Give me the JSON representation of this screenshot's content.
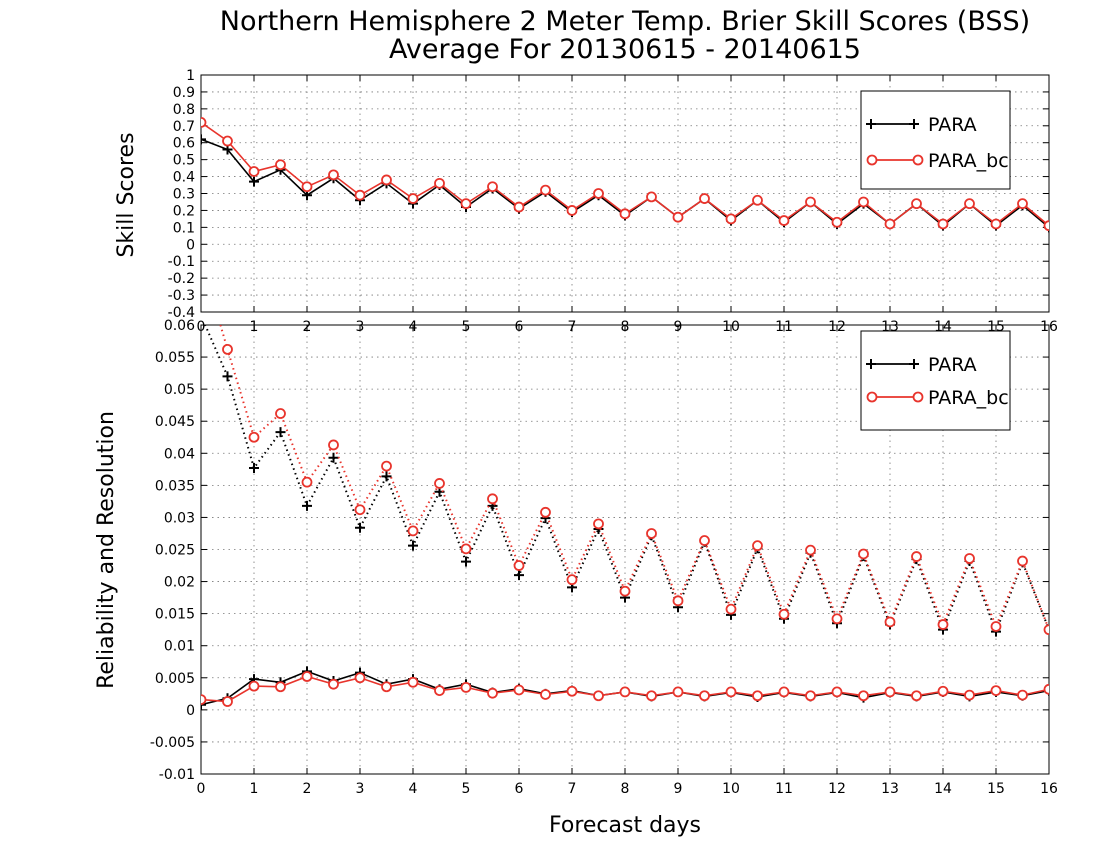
{
  "chart_data": {
    "title_line1": "Northern Hemisphere 2 Meter Temp. Brier Skill Scores (BSS)",
    "title_line2": "Average For 20130615 - 20140615",
    "xlabel": "Forecast days",
    "x_ticks": [
      0,
      1,
      2,
      3,
      4,
      5,
      6,
      7,
      8,
      9,
      10,
      11,
      12,
      13,
      14,
      15,
      16
    ],
    "x": [
      0,
      0.5,
      1,
      1.5,
      2,
      2.5,
      3,
      3.5,
      4,
      4.5,
      5,
      5.5,
      6,
      6.5,
      7,
      7.5,
      8,
      8.5,
      9,
      9.5,
      10,
      10.5,
      11,
      11.5,
      12,
      12.5,
      13,
      13.5,
      14,
      14.5,
      15,
      15.5,
      16
    ],
    "colors": {
      "PARA": "#000000",
      "PARA_bc": "#e8342c"
    },
    "legend_placement": "top-right",
    "panels": [
      {
        "type": "line",
        "ylabel": "Skill Scores",
        "ylim": [
          -0.4,
          1
        ],
        "y_tick_labels": [
          "-0.4",
          "-0.3",
          "-0.2",
          "-0.1",
          "0",
          "0.1",
          "0.2",
          "0.3",
          "0.4",
          "0.5",
          "0.6",
          "0.7",
          "0.8",
          "0.9",
          "1"
        ],
        "grid": true,
        "series": [
          {
            "name": "PARA",
            "marker": "plus",
            "style": "solid",
            "values": [
              0.62,
              0.56,
              0.37,
              0.44,
              0.29,
              0.39,
              0.26,
              0.36,
              0.24,
              0.35,
              0.22,
              0.33,
              0.21,
              0.31,
              0.19,
              0.29,
              0.17,
              0.28,
              0.16,
              0.27,
              0.14,
              0.26,
              0.13,
              0.25,
              0.12,
              0.24,
              0.12,
              0.24,
              0.11,
              0.24,
              0.11,
              0.23,
              0.1
            ]
          },
          {
            "name": "PARA_bc",
            "marker": "circle",
            "style": "solid",
            "values": [
              0.72,
              0.61,
              0.43,
              0.47,
              0.34,
              0.41,
              0.29,
              0.38,
              0.27,
              0.36,
              0.24,
              0.34,
              0.22,
              0.32,
              0.2,
              0.3,
              0.18,
              0.28,
              0.16,
              0.27,
              0.15,
              0.26,
              0.14,
              0.25,
              0.13,
              0.25,
              0.12,
              0.24,
              0.12,
              0.24,
              0.12,
              0.24,
              0.11
            ]
          }
        ]
      },
      {
        "type": "line",
        "ylabel": "Reliability and Resolution",
        "ylim": [
          -0.01,
          0.06
        ],
        "y_tick_labels": [
          "-0.01",
          "-0.005",
          "0",
          "0.005",
          "0.01",
          "0.015",
          "0.02",
          "0.025",
          "0.03",
          "0.035",
          "0.04",
          "0.045",
          "0.05",
          "0.055",
          "0.06"
        ],
        "grid": true,
        "series": [
          {
            "name": "PARA",
            "kind": "resolution",
            "marker": "plus",
            "style": "dotted",
            "values": [
              0.0615,
              0.052,
              0.0377,
              0.0433,
              0.0318,
              0.0393,
              0.0284,
              0.0364,
              0.0256,
              0.034,
              0.0231,
              0.0318,
              0.021,
              0.0299,
              0.0191,
              0.0282,
              0.0175,
              0.0272,
              0.016,
              0.0262,
              0.0148,
              0.0252,
              0.0142,
              0.0245,
              0.0135,
              0.024,
              0.0133,
              0.0235,
              0.0125,
              0.0232,
              0.0122,
              0.023,
              0.0125
            ]
          },
          {
            "name": "PARA_bc",
            "kind": "resolution",
            "marker": "circle",
            "style": "dotted",
            "values": [
              0.0705,
              0.0562,
              0.0425,
              0.0462,
              0.0355,
              0.0413,
              0.0312,
              0.038,
              0.0279,
              0.0353,
              0.0251,
              0.0329,
              0.0225,
              0.0308,
              0.0203,
              0.029,
              0.0185,
              0.0275,
              0.017,
              0.0264,
              0.0157,
              0.0256,
              0.0149,
              0.0249,
              0.0142,
              0.0243,
              0.0137,
              0.0239,
              0.0133,
              0.0236,
              0.013,
              0.0232,
              0.0125
            ]
          },
          {
            "name": "PARA",
            "kind": "reliability",
            "marker": "plus",
            "style": "solid",
            "values": [
              0.0008,
              0.0018,
              0.0048,
              0.0043,
              0.006,
              0.0045,
              0.0058,
              0.004,
              0.0048,
              0.0032,
              0.004,
              0.0027,
              0.0033,
              0.0025,
              0.003,
              0.0022,
              0.0028,
              0.0021,
              0.0028,
              0.0021,
              0.0027,
              0.002,
              0.0027,
              0.0021,
              0.0027,
              0.0019,
              0.0027,
              0.0021,
              0.0028,
              0.0021,
              0.0028,
              0.0022,
              0.003
            ]
          },
          {
            "name": "PARA_bc",
            "kind": "reliability",
            "marker": "circle",
            "style": "solid",
            "values": [
              0.0016,
              0.0013,
              0.0037,
              0.0036,
              0.0052,
              0.004,
              0.005,
              0.0036,
              0.0043,
              0.003,
              0.0035,
              0.0026,
              0.0031,
              0.0024,
              0.0029,
              0.0022,
              0.0028,
              0.0022,
              0.0028,
              0.0022,
              0.0028,
              0.0022,
              0.0028,
              0.0022,
              0.0028,
              0.0022,
              0.0028,
              0.0022,
              0.0029,
              0.0023,
              0.003,
              0.0023,
              0.0032
            ]
          }
        ]
      }
    ]
  }
}
